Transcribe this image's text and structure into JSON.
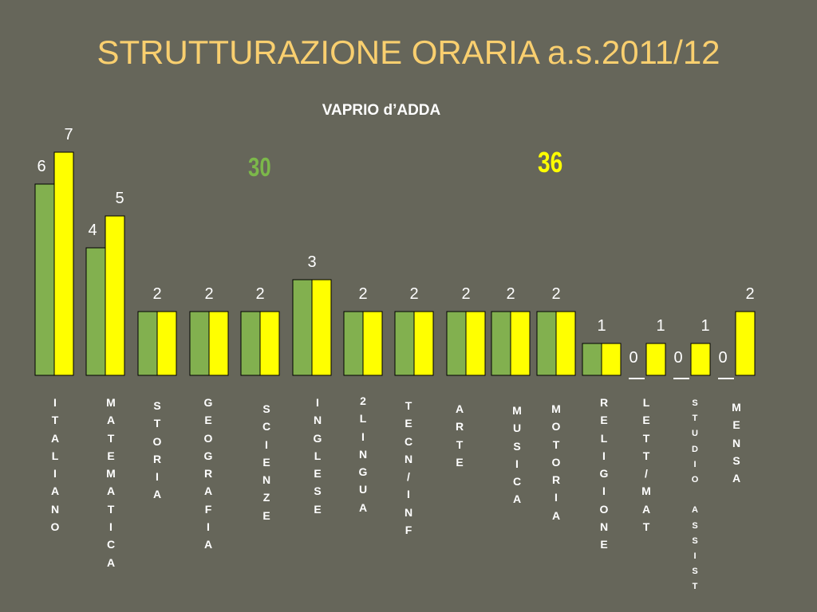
{
  "page": {
    "title": "STRUTTURAZIONE ORARIA a.s.2011/12",
    "subtitle": "VAPRIO d’ADDA",
    "total_a": "30",
    "total_b": "36"
  },
  "colors": {
    "background": "#66665a",
    "series_a": "#82b04f",
    "series_b": "#ffff00",
    "title": "#f9cf6f"
  },
  "chart_data": {
    "type": "bar",
    "title": "STRUTTURAZIONE ORARIA a.s.2011/12",
    "subtitle": "VAPRIO d’ADDA",
    "categories": [
      "ITALIANO",
      "MATEMATICA",
      "STORIA",
      "GEOGRAFIA",
      "SCIENZE",
      "INGLESE",
      "2LINGUA",
      "TECN/INF",
      "ARTE",
      "MUSICA",
      "MOTORIA",
      "RELIGIONE",
      "LETT/MAT",
      "STUDIO ASSIST",
      "MENSA"
    ],
    "category_labels": [
      [
        "I",
        "T",
        "A",
        "L",
        "I",
        "A",
        "N",
        "O"
      ],
      [
        "M",
        "A",
        "T",
        "E",
        "M",
        "A",
        "T",
        "I",
        "C",
        "A"
      ],
      [
        "S",
        "T",
        "O",
        "R",
        "I",
        "A"
      ],
      [
        "G",
        "E",
        "O",
        "G",
        "R",
        "A",
        "F",
        "I",
        "A"
      ],
      [
        "S",
        "C",
        "I",
        "E",
        "N",
        "Z",
        "E"
      ],
      [
        "I",
        "N",
        "G",
        "L",
        "E",
        "S",
        "E"
      ],
      [
        "2",
        "L",
        "I",
        "N",
        "G",
        "U",
        "A"
      ],
      [
        "T",
        "E",
        "C",
        "N",
        "/",
        "I",
        "N",
        "F"
      ],
      [
        "A",
        "R",
        "T",
        "E"
      ],
      [
        "M",
        "U",
        "S",
        "I",
        "C",
        "A"
      ],
      [
        "M",
        "O",
        "T",
        "O",
        "R",
        "I",
        "A"
      ],
      [
        "R",
        "E",
        "L",
        "I",
        "G",
        "I",
        "O",
        "N",
        "E"
      ],
      [
        "L",
        "E",
        "T",
        "T",
        "/",
        "M",
        "A",
        "T"
      ],
      [
        "S",
        "T",
        "U",
        "D",
        "I",
        "O",
        "",
        "A",
        "S",
        "S",
        "I",
        "S",
        "T"
      ],
      [
        "M",
        "E",
        "N",
        "S",
        "A"
      ]
    ],
    "series": [
      {
        "color": "#82b04f",
        "values": [
          6,
          4,
          2,
          2,
          2,
          3,
          2,
          2,
          2,
          2,
          2,
          1,
          0,
          0,
          0
        ]
      },
      {
        "color": "#ffff00",
        "values": [
          7,
          5,
          2,
          2,
          2,
          3,
          2,
          2,
          2,
          2,
          2,
          1,
          1,
          1,
          2
        ]
      }
    ],
    "show_pair_value_once_if_equal": true,
    "ylim": [
      0,
      7
    ],
    "grid": false,
    "legend": "none"
  }
}
